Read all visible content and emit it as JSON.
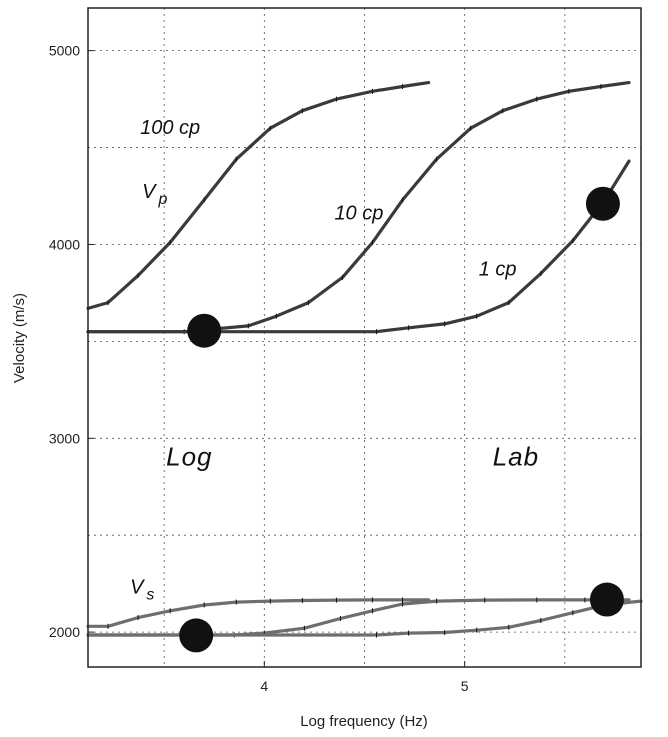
{
  "chart_data": {
    "type": "line",
    "title": "",
    "xlabel": "Log frequency (Hz)",
    "ylabel": "Velocity (m/s)",
    "xlim": [
      3.12,
      5.88
    ],
    "ylim": [
      1820,
      5220
    ],
    "grid": true,
    "x_ticks": [
      4,
      5
    ],
    "y_ticks": [
      2000,
      3000,
      4000,
      5000
    ],
    "x_gridlines": [
      3.5,
      4.0,
      4.5,
      5.0,
      5.5
    ],
    "y_gridlines": [
      2000,
      2500,
      3000,
      3500,
      4000,
      4500,
      5000
    ],
    "series": [
      {
        "group": "Vp",
        "name": "100 cp",
        "color": "#3a3a3a",
        "x": [
          3.12,
          3.22,
          3.37,
          3.53,
          3.7,
          3.86,
          4.03,
          4.19,
          4.36,
          4.54,
          4.69,
          4.82
        ],
        "y": [
          3670,
          3700,
          3840,
          4010,
          4230,
          4440,
          4600,
          4690,
          4750,
          4790,
          4815,
          4835
        ]
      },
      {
        "group": "Vp",
        "name": "10 cp",
        "color": "#3a3a3a",
        "x": [
          3.12,
          3.6,
          3.92,
          4.06,
          4.22,
          4.39,
          4.54,
          4.69,
          4.86,
          5.03,
          5.19,
          5.36,
          5.52,
          5.68,
          5.82
        ],
        "y": [
          3550,
          3550,
          3580,
          3630,
          3700,
          3830,
          4010,
          4230,
          4440,
          4600,
          4690,
          4750,
          4790,
          4815,
          4835
        ]
      },
      {
        "group": "Vp",
        "name": "1 cp",
        "color": "#3a3a3a",
        "x": [
          3.12,
          4.56,
          4.72,
          4.9,
          5.06,
          5.22,
          5.38,
          5.54,
          5.7,
          5.82
        ],
        "y": [
          3550,
          3550,
          3570,
          3590,
          3630,
          3700,
          3850,
          4020,
          4230,
          4430
        ]
      },
      {
        "group": "Vs",
        "name": "100 cp",
        "color": "#6e6e6e",
        "x": [
          3.12,
          3.22,
          3.37,
          3.53,
          3.7,
          3.86,
          4.03,
          4.19,
          4.36,
          4.54,
          4.69,
          4.82
        ],
        "y": [
          2030,
          2030,
          2075,
          2110,
          2140,
          2155,
          2160,
          2163,
          2165,
          2166,
          2166,
          2166
        ]
      },
      {
        "group": "Vs",
        "name": "10 cp",
        "color": "#6e6e6e",
        "x": [
          3.12,
          3.85,
          4.0,
          4.2,
          4.38,
          4.54,
          4.69,
          4.86,
          5.1,
          5.36,
          5.6,
          5.82
        ],
        "y": [
          1985,
          1985,
          1995,
          2020,
          2070,
          2110,
          2145,
          2160,
          2165,
          2166,
          2166,
          2166
        ]
      },
      {
        "group": "Vs",
        "name": "1 cp",
        "color": "#6e6e6e",
        "x": [
          3.12,
          4.56,
          4.72,
          4.9,
          5.06,
          5.22,
          5.38,
          5.54,
          5.7,
          5.88
        ],
        "y": [
          1985,
          1985,
          1995,
          1998,
          2010,
          2025,
          2060,
          2100,
          2140,
          2160
        ]
      }
    ],
    "markers": [
      {
        "x": 3.7,
        "y": 3555
      },
      {
        "x": 5.69,
        "y": 4210
      },
      {
        "x": 3.66,
        "y": 1983
      },
      {
        "x": 5.71,
        "y": 2168
      }
    ],
    "annotations": [
      {
        "id": "vp",
        "text": "V",
        "sub": "p",
        "x": 3.39,
        "y": 4240
      },
      {
        "id": "vs",
        "text": "V",
        "sub": "s",
        "x": 3.33,
        "y": 2200
      },
      {
        "id": "label-100cp",
        "text": "100 cp",
        "x": 3.38,
        "y": 4570
      },
      {
        "id": "label-10cp",
        "text": "10 cp",
        "x": 4.35,
        "y": 4130
      },
      {
        "id": "label-1cp",
        "text": "1 cp",
        "x": 5.07,
        "y": 3840
      },
      {
        "id": "log",
        "text": "Log",
        "x": 3.51,
        "y": 2860
      },
      {
        "id": "lab",
        "text": "Lab",
        "x": 5.14,
        "y": 2860
      }
    ]
  }
}
